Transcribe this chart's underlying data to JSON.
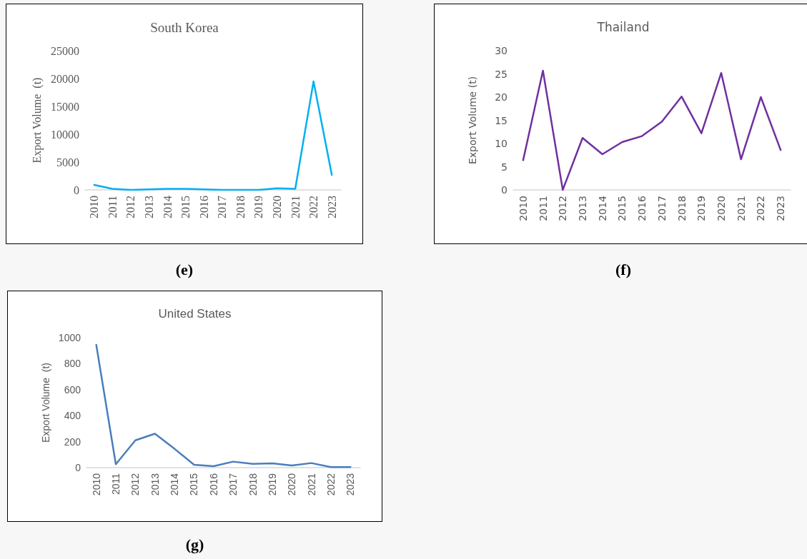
{
  "chart_data": [
    {
      "type": "line",
      "title": "South Korea",
      "ylabel": "Export Volume  (t)",
      "categories": [
        "2010",
        "2011",
        "2012",
        "2013",
        "2014",
        "2015",
        "2016",
        "2017",
        "2018",
        "2019",
        "2020",
        "2021",
        "2022",
        "2023"
      ],
      "series": [
        {
          "color": "#00b0f0",
          "values": [
            900,
            200,
            0,
            100,
            200,
            200,
            100,
            0,
            0,
            0,
            300,
            200,
            19500,
            2700
          ]
        }
      ],
      "ylim": [
        0,
        25000
      ],
      "yticks": [
        0,
        5000,
        10000,
        15000,
        20000,
        25000
      ],
      "grid": false,
      "marker": "none",
      "line_style": "solid",
      "annotations": [
        "(e)"
      ]
    },
    {
      "type": "line",
      "title": "Thailand",
      "ylabel": "Export Volume (t)",
      "categories": [
        "2010",
        "2011",
        "2012",
        "2013",
        "2014",
        "2015",
        "2016",
        "2017",
        "2018",
        "2019",
        "2020",
        "2021",
        "2022",
        "2023"
      ],
      "series": [
        {
          "color": "#7030a0",
          "values": [
            6.4,
            25.7,
            0,
            11.2,
            7.7,
            10.3,
            11.6,
            14.7,
            20.1,
            12.2,
            25.2,
            6.6,
            20,
            8.6
          ]
        }
      ],
      "ylim": [
        0,
        30
      ],
      "yticks": [
        0,
        5,
        10,
        15,
        20,
        25,
        30
      ],
      "grid": false,
      "marker": "none",
      "line_style": "solid",
      "annotations": [
        "(f)"
      ]
    },
    {
      "type": "line",
      "title": "United States",
      "ylabel": "Export Volume  (t)",
      "categories": [
        "2010",
        "2011",
        "2012",
        "2013",
        "2014",
        "2015",
        "2016",
        "2017",
        "2018",
        "2019",
        "2020",
        "2021",
        "2022",
        "2023"
      ],
      "series": [
        {
          "color": "#4a7ebb",
          "values": [
            945,
            26,
            210,
            261,
            145,
            22,
            11,
            46,
            29,
            33,
            17,
            35,
            4,
            4
          ]
        }
      ],
      "ylim": [
        0,
        1000
      ],
      "yticks": [
        0,
        200,
        400,
        600,
        800,
        1000
      ],
      "grid": false,
      "marker": "none",
      "line_style": "solid",
      "annotations": [
        "(g)"
      ]
    }
  ]
}
